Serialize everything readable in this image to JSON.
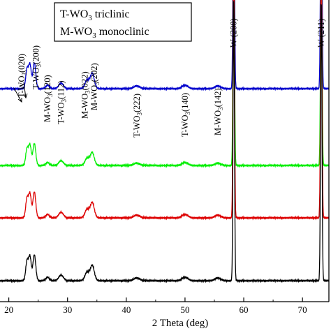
{
  "chart_data": {
    "type": "line",
    "xlabel": "2 Theta (deg)",
    "ylabel": "",
    "xlim": [
      18.5,
      74.5
    ],
    "xticks": [
      "20",
      "30",
      "40",
      "50",
      "60",
      "70"
    ],
    "grid": false,
    "legend_box": {
      "lines": [
        {
          "prefix": "T-WO",
          "sub": "3",
          "suffix": " triclinic"
        },
        {
          "prefix": "M-WO",
          "sub": "3",
          "suffix": " monoclinic"
        }
      ]
    },
    "annotations": [
      {
        "label": "T-WO3(020)",
        "prefix": "T-WO",
        "sub": "3",
        "suffix": "(020)",
        "x": 22.9
      },
      {
        "label": "T-WO3(200)",
        "prefix": "T-WO",
        "sub": "3",
        "suffix": "(200)",
        "x": 24.4
      },
      {
        "label": "M-WO3(120)",
        "prefix": "M-WO",
        "sub": "3",
        "suffix": "(120)",
        "x": 26.6
      },
      {
        "label": "T-WO3(112)",
        "prefix": "T-WO",
        "sub": "3",
        "suffix": "(112)",
        "x": 28.9
      },
      {
        "label": "M-WO3(022)",
        "prefix": "M-WO",
        "sub": "3",
        "suffix": "(022)",
        "x": 33.3
      },
      {
        "label": "M-WO3(202)",
        "prefix": "M-WO",
        "sub": "3",
        "suffix": "(202)",
        "x": 34.2
      },
      {
        "label": "T-WO3(222)",
        "prefix": "T-WO",
        "sub": "3",
        "suffix": "(222)",
        "x": 41.8
      },
      {
        "label": "T-WO3(140)",
        "prefix": "T-WO",
        "sub": "3",
        "suffix": "(140)",
        "x": 50.0
      },
      {
        "label": "M-WO3(142)",
        "prefix": "M-WO",
        "sub": "3",
        "suffix": "(142)",
        "x": 55.6
      },
      {
        "label": "W (200)",
        "prefix": "W (200)",
        "sub": "",
        "suffix": "",
        "x": 58.3
      },
      {
        "label": "W (211)",
        "prefix": "W (211)",
        "sub": "",
        "suffix": "",
        "x": 73.2
      }
    ],
    "peaks": [
      {
        "x": 23.1,
        "h": 28,
        "w": 0.22
      },
      {
        "x": 23.6,
        "h": 34,
        "w": 0.22
      },
      {
        "x": 24.35,
        "h": 37,
        "w": 0.24
      },
      {
        "x": 26.6,
        "h": 5,
        "w": 0.3
      },
      {
        "x": 28.9,
        "h": 8,
        "w": 0.4
      },
      {
        "x": 33.3,
        "h": 12,
        "w": 0.35
      },
      {
        "x": 34.2,
        "h": 22,
        "w": 0.35
      },
      {
        "x": 41.8,
        "h": 4,
        "w": 0.5
      },
      {
        "x": 50.0,
        "h": 5,
        "w": 0.5
      },
      {
        "x": 55.6,
        "h": 4,
        "w": 0.5
      },
      {
        "x": 58.3,
        "h": 400,
        "w": 0.12
      },
      {
        "x": 73.2,
        "h": 400,
        "w": 0.12
      }
    ],
    "series": [
      {
        "color": "#0000cc",
        "offset": 305,
        "scale": 1.0
      },
      {
        "color": "#00ee00",
        "offset": 195,
        "scale": 0.85
      },
      {
        "color": "#dd0000",
        "offset": 120,
        "scale": 1.0
      },
      {
        "color": "#000000",
        "offset": 30,
        "scale": 1.0
      }
    ]
  }
}
